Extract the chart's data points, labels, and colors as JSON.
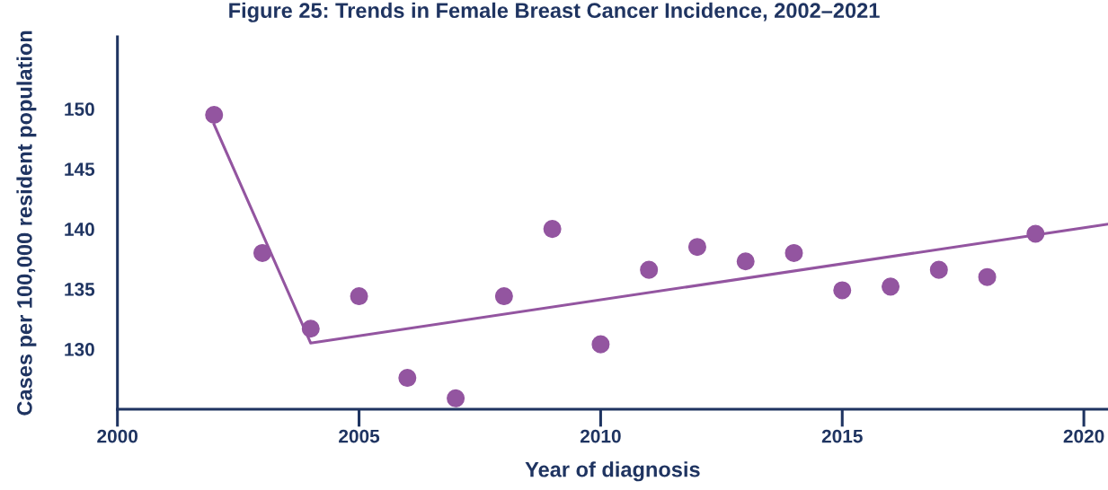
{
  "chart_data": {
    "type": "scatter",
    "title": "Figure 25: Trends in Female Breast Cancer Incidence, 2002–2021",
    "xlabel": "Year of diagnosis",
    "ylabel": "Cases per 100,000 resident population",
    "series": [
      {
        "color": "#9355a0",
        "marker": "circle",
        "x": [
          2002,
          2003,
          2004,
          2005,
          2006,
          2007,
          2008,
          2009,
          2010,
          2011,
          2012,
          2013,
          2014,
          2015,
          2016,
          2017,
          2018,
          2019
        ],
        "values": [
          149.5,
          138.0,
          131.7,
          134.4,
          127.6,
          125.9,
          134.4,
          140.0,
          130.4,
          136.6,
          138.5,
          137.3,
          138.0,
          134.9,
          135.2,
          136.6,
          136.0,
          139.6
        ]
      },
      {
        "type": "line",
        "color": "#9355a0",
        "x": [
          2002,
          2004,
          2020.5
        ],
        "values": [
          148.7,
          130.5,
          140.4
        ]
      }
    ],
    "xlim": [
      2000,
      2020.5
    ],
    "ylim": [
      125,
      156
    ],
    "xticks": [
      2000,
      2005,
      2010,
      2015,
      2020
    ],
    "yticks": [
      130,
      135,
      140,
      145,
      150
    ],
    "grid": false,
    "legend": false
  }
}
